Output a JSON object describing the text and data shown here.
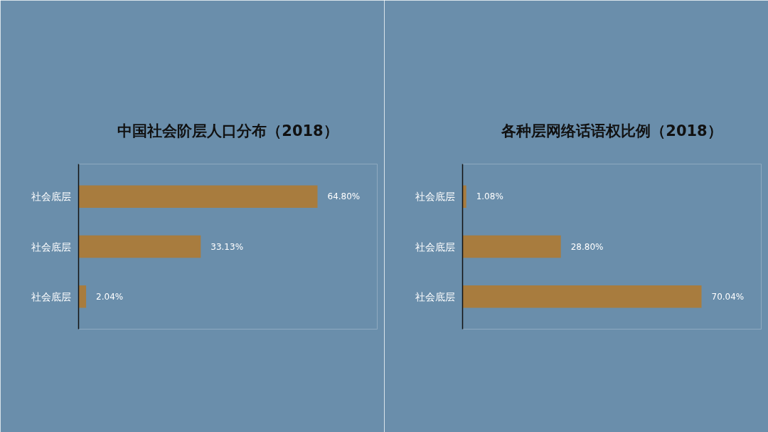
{
  "chart_data": [
    {
      "type": "bar",
      "orientation": "horizontal",
      "title": "中国社会阶层人口分布（2018）",
      "categories": [
        "社会底层",
        "社会底层",
        "社会底层"
      ],
      "values": [
        64.8,
        33.13,
        2.04
      ],
      "color": "#a87c3e",
      "data_labels": true,
      "value_labels": [
        "64.80%",
        "33.13%",
        "2.04%"
      ],
      "tick_labels": "y"
    },
    {
      "type": "bar",
      "orientation": "horizontal",
      "title": "各种层网络话语权比例（2018）",
      "categories": [
        "社会底层",
        "社会底层",
        "社会底层"
      ],
      "values": [
        1.08,
        28.8,
        70.04
      ],
      "color": "#a87c3e",
      "data_labels": true,
      "value_labels": [
        "1.08%",
        "28.80%",
        "70.04%"
      ],
      "tick_labels": "y"
    }
  ]
}
